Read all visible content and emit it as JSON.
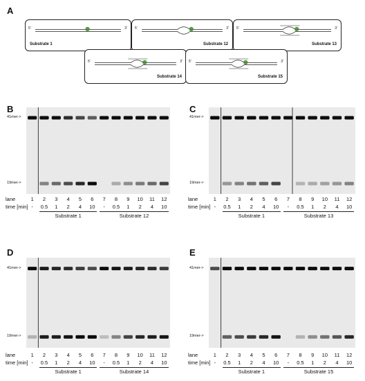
{
  "panel_A": {
    "letter": "A",
    "end5": "5'",
    "end3": "3'",
    "substrates": [
      {
        "label": "Substrate 1"
      },
      {
        "label": "Substrate 12"
      },
      {
        "label": "Substrate 13"
      },
      {
        "label": "Substrate 14"
      },
      {
        "label": "Substrate 15"
      }
    ],
    "colors": {
      "fluorophore": "#3f8a2e",
      "strand": "#222222"
    }
  },
  "gels": [
    {
      "letter": "B",
      "marker_top": "41mer->",
      "marker_bottom": "19mer->",
      "lane_label": "lane",
      "time_label": "time [min]",
      "lanes": [
        "1",
        "2",
        "3",
        "4",
        "5",
        "6",
        "7",
        "8",
        "9",
        "10",
        "11",
        "12"
      ],
      "times": [
        "-",
        "0.5",
        "1",
        "2",
        "4",
        "10",
        "-",
        "0.5",
        "1",
        "2",
        "4",
        "10"
      ],
      "groups": [
        "Substrate 1",
        "Substrate 12"
      ],
      "top_band": [
        1,
        1,
        1,
        0.8,
        0.65,
        0.5,
        1,
        1,
        1,
        1,
        1,
        1
      ],
      "bottom_band": [
        0,
        0.35,
        0.5,
        0.65,
        0.85,
        1,
        0,
        0.15,
        0.3,
        0.4,
        0.5,
        0.7
      ]
    },
    {
      "letter": "C",
      "marker_top": "41mer->",
      "marker_bottom": "19mer->",
      "lane_label": "lane",
      "time_label": "time [min]",
      "lanes": [
        "1",
        "2",
        "3",
        "4",
        "5",
        "6",
        "7",
        "8",
        "9",
        "10",
        "11",
        "12"
      ],
      "times": [
        "-",
        "0.5",
        "1",
        "2",
        "4",
        "10",
        "-",
        "0.5",
        "1",
        "2",
        "4",
        "10"
      ],
      "groups": [
        "Substrate 1",
        "Substrate 13"
      ],
      "top_band": [
        1,
        1,
        1,
        1,
        1,
        1,
        1,
        1,
        1,
        1,
        1,
        1
      ],
      "bottom_band": [
        0,
        0.25,
        0.35,
        0.45,
        0.55,
        0.7,
        0,
        0.1,
        0.15,
        0.2,
        0.25,
        0.35
      ]
    },
    {
      "letter": "D",
      "marker_top": "41mer->",
      "marker_bottom": "19mer->",
      "lane_label": "lane",
      "time_label": "time [min]",
      "lanes": [
        "1",
        "2",
        "3",
        "4",
        "5",
        "6",
        "7",
        "8",
        "9",
        "10",
        "11",
        "12"
      ],
      "times": [
        "-",
        "0.5",
        "1",
        "2",
        "4",
        "10",
        "-",
        "0.5",
        "1",
        "2",
        "4",
        "10"
      ],
      "groups": [
        "Substrate 1",
        "Substrate 14"
      ],
      "top_band": [
        1,
        0.9,
        0.85,
        0.8,
        0.7,
        0.6,
        1,
        0.95,
        0.9,
        0.85,
        0.8,
        0.7
      ],
      "bottom_band": [
        0.1,
        0.9,
        0.9,
        0.95,
        1,
        1,
        0.05,
        0.35,
        0.7,
        0.85,
        0.9,
        0.95
      ]
    },
    {
      "letter": "E",
      "marker_top": "41mer->",
      "marker_bottom": "19mer->",
      "lane_label": "lane",
      "time_label": "time [min]",
      "lanes": [
        "1",
        "2",
        "3",
        "4",
        "5",
        "6",
        "7",
        "8",
        "9",
        "10",
        "11",
        "12"
      ],
      "times": [
        "-",
        "0.5",
        "1",
        "2",
        "4",
        "10",
        "-",
        "0.5",
        "1",
        "2",
        "4",
        "10"
      ],
      "groups": [
        "Substrate 1",
        "Substrate 15"
      ],
      "top_band": [
        0.6,
        1,
        1,
        1,
        1,
        1,
        1,
        1,
        1,
        1,
        1,
        1
      ],
      "bottom_band": [
        0,
        0.55,
        0.65,
        0.75,
        0.85,
        0.95,
        0,
        0.1,
        0.3,
        0.45,
        0.6,
        0.85
      ]
    }
  ]
}
